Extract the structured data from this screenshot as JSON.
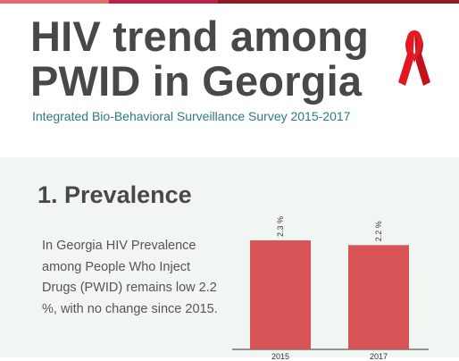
{
  "header": {
    "title_line1": "HIV trend among",
    "title_line2": "PWID in Georgia",
    "subtitle": "Integrated Bio-Behavioral Surveillance Survey 2015-2017",
    "ribbon_icon": "red-ribbon-icon"
  },
  "colors": {
    "bar": "#d95457",
    "title": "#484848",
    "subtitle": "#2c7a82",
    "panel_bg": "#f1f6f3",
    "top_bar": [
      "#e07070",
      "#b8234a",
      "#8c1d24"
    ]
  },
  "section": {
    "heading": "1. Prevalence",
    "description": "In Georgia HIV Prevalence among People Who Inject Drugs (PWID) remains low 2.2 %, with no change since 2015."
  },
  "chart_data": {
    "type": "bar",
    "categories": [
      "2015",
      "2017"
    ],
    "values": [
      2.3,
      2.2
    ],
    "value_labels": [
      "2.3 %",
      "2.2 %"
    ],
    "title": "",
    "xlabel": "",
    "ylabel": "",
    "ylim": [
      0,
      2.3
    ],
    "grid": false,
    "legend": "none"
  }
}
